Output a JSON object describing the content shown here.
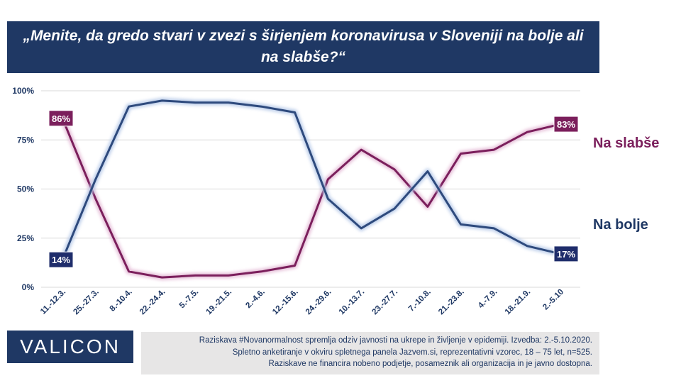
{
  "title": "„Menite, da gredo stvari v zvezi s širjenjem koronavirusa v Sloveniji na bolje ali na slabše?“",
  "chart_data": {
    "type": "line",
    "categories": [
      "11.-12.3.",
      "25.-27.3.",
      "8.-10.4.",
      "22.-24.4.",
      "5.-7.5.",
      "19.-21.5.",
      "2.-4.6.",
      "12.-15.6.",
      "24.-29.6.",
      "10.-13.7.",
      "23.-27.7.",
      "7.-10.8.",
      "21.-23.8.",
      "4.-7.9.",
      "18.-21.9.",
      "2.-5.10"
    ],
    "ylim": [
      0,
      100
    ],
    "yticks": [
      "0%",
      "25%",
      "50%",
      "75%",
      "100%"
    ],
    "grid": true,
    "series": [
      {
        "name": "Na slabše",
        "color": "#7b1f5c",
        "values": [
          86,
          45,
          8,
          5,
          6,
          6,
          8,
          11,
          55,
          70,
          60,
          41,
          68,
          70,
          79,
          83
        ],
        "start_label": "86%",
        "end_label": "83%"
      },
      {
        "name": "Na bolje",
        "color": "#2e4a7d",
        "values": [
          14,
          55,
          92,
          95,
          94,
          94,
          92,
          89,
          45,
          30,
          40,
          59,
          32,
          30,
          21,
          17
        ],
        "start_label": "14%",
        "end_label": "17%"
      }
    ]
  },
  "logo": "VALICON",
  "note": [
    "Raziskava #Novanormalnost spremlja odziv javnosti na ukrepe in življenje v epidemiji. Izvedba: 2.-5.10.2020.",
    "Spletno anketiranje v okviru spletnega panela Jazvem.si, reprezentativni vzorec, 18 – 75 let, n=525.",
    "Raziskave ne financira nobeno podjetje, posameznik ali organizacija in je javno dostopna."
  ]
}
